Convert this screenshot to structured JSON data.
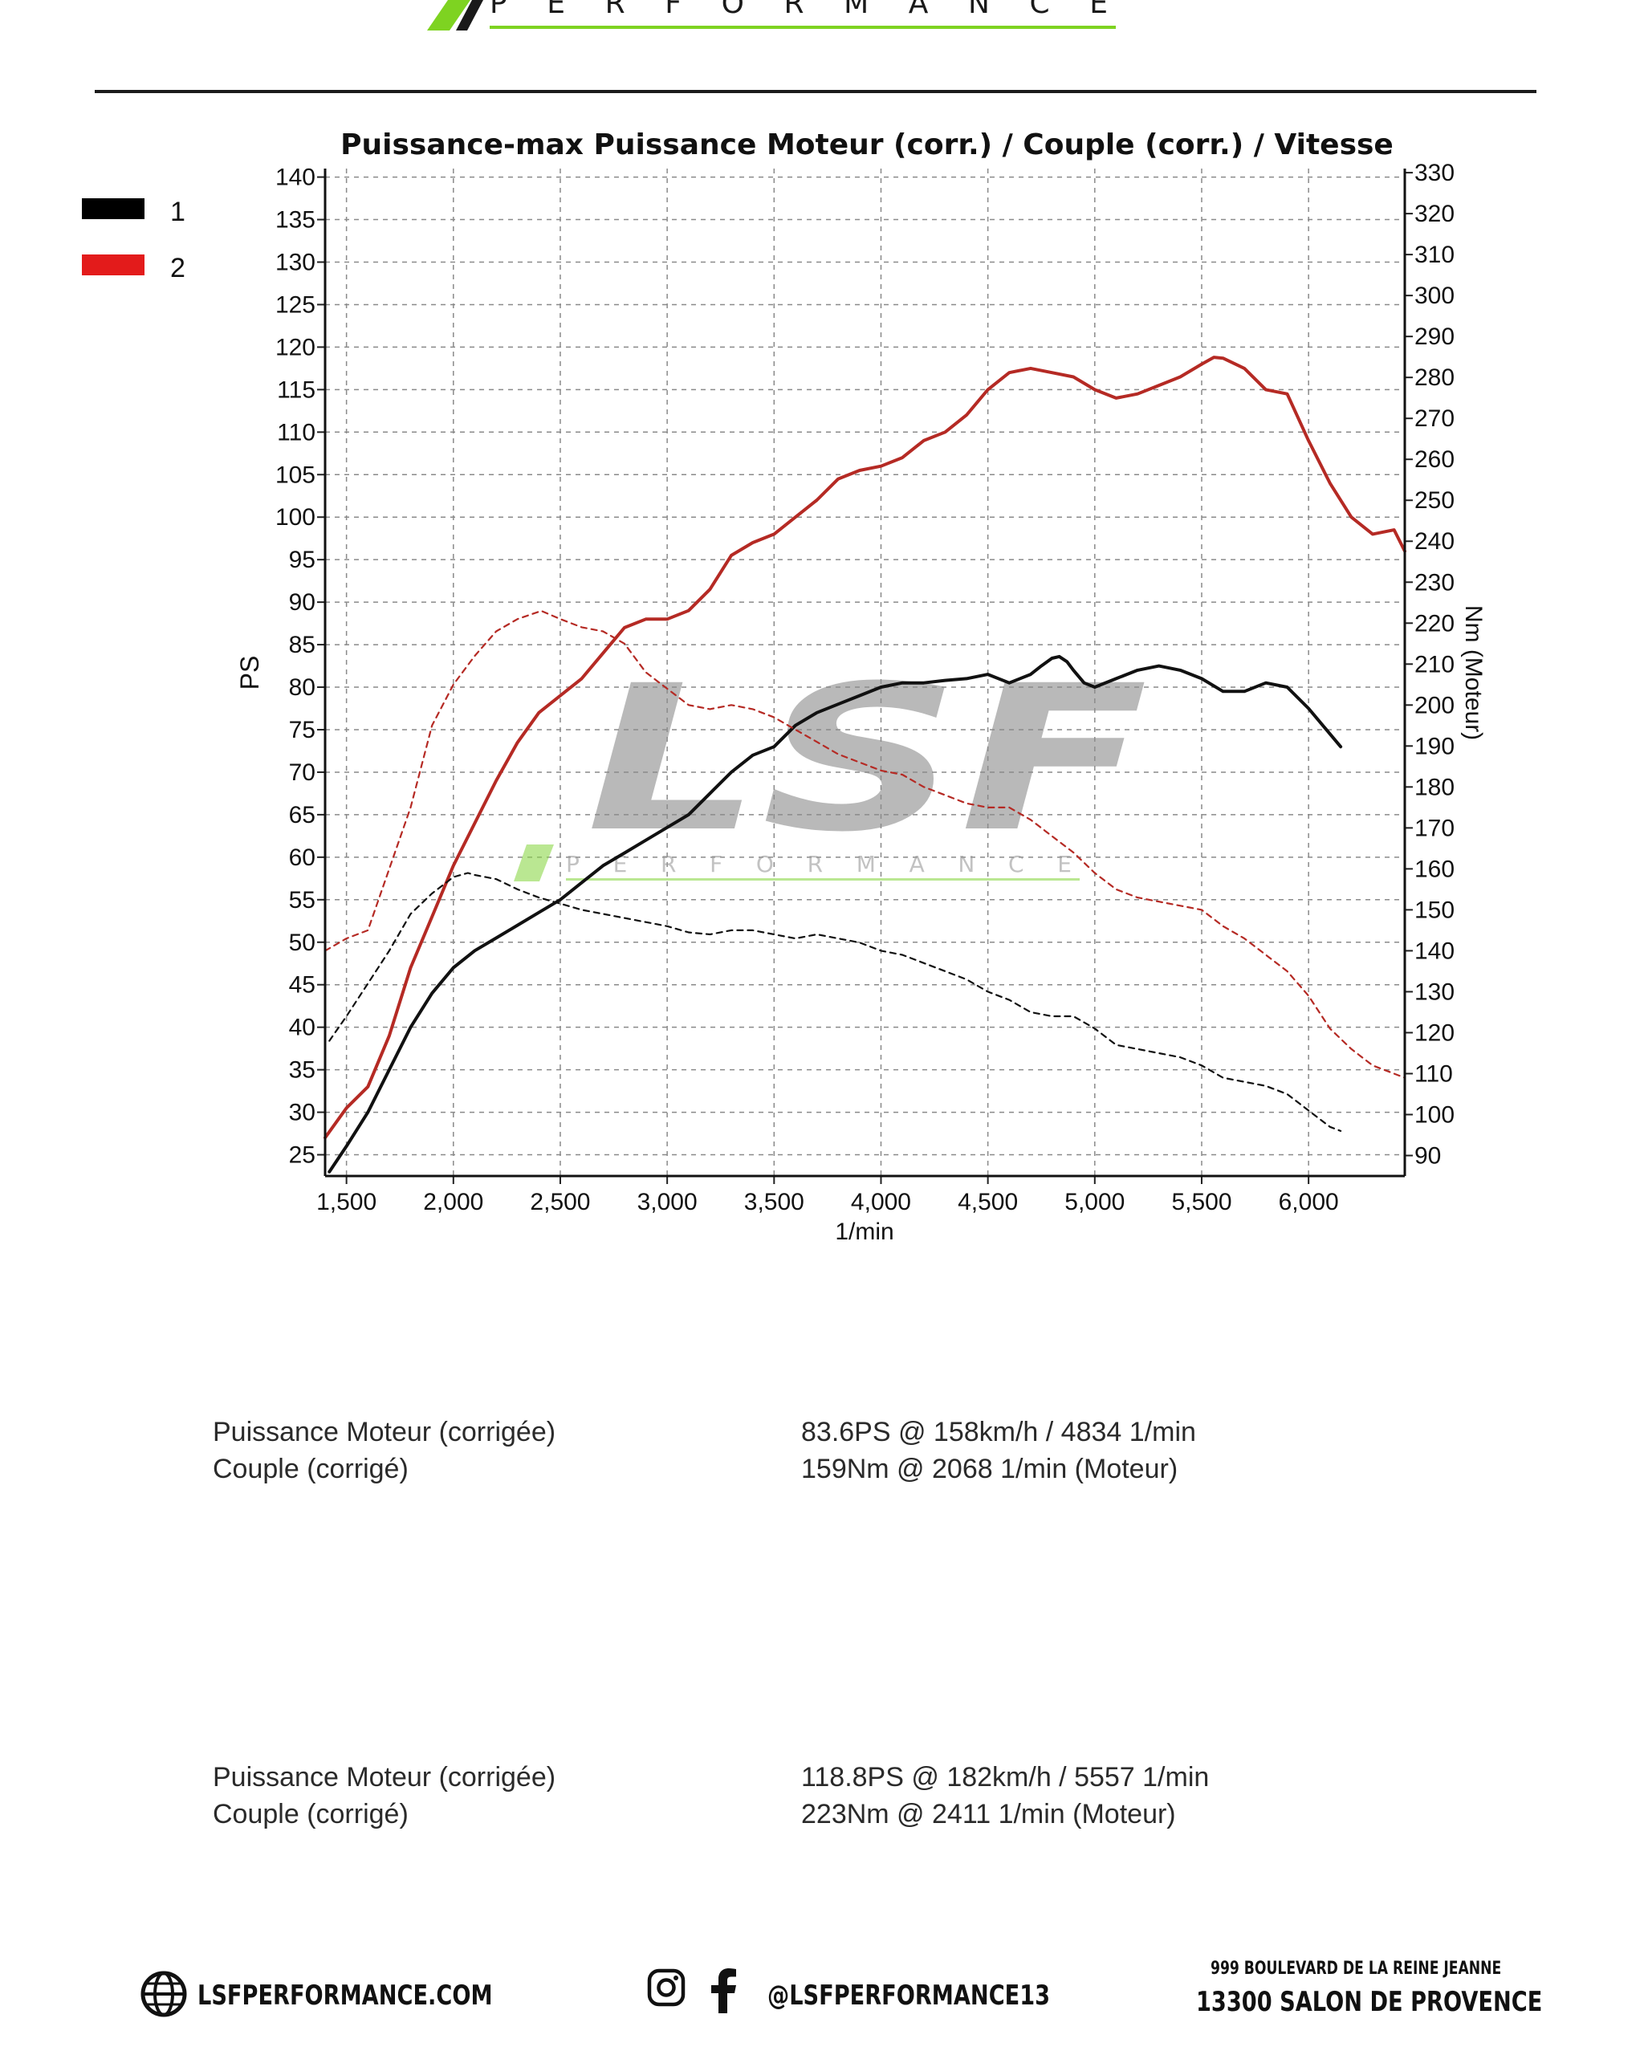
{
  "header": {
    "logo_text": "PERFORMANCE",
    "accent": "#7ed321"
  },
  "legend": [
    {
      "label": "1",
      "color": "#000000"
    },
    {
      "label": "2",
      "color": "#e31b1b"
    }
  ],
  "watermark": {
    "brand": "LSF",
    "sub": "PERFORMANCE"
  },
  "chart_data": {
    "type": "line",
    "title": "Puissance-max Puissance Moteur (corr.) / Couple (corr.) / Vitesse",
    "xlabel": "1/min",
    "ylabel_left": "PS",
    "ylabel_right": "Nm (Moteur)",
    "xlim": [
      1400,
      6450
    ],
    "ylim_left": [
      22.5,
      141
    ],
    "ylim_right": [
      85,
      331
    ],
    "x_ticks": [
      1500,
      2000,
      2500,
      3000,
      3500,
      4000,
      4500,
      5000,
      5500,
      6000
    ],
    "x_tick_labels": [
      "1,500",
      "2,000",
      "2,500",
      "3,000",
      "3,500",
      "4,000",
      "4,500",
      "5,000",
      "5,500",
      "6,000"
    ],
    "y_left_ticks": [
      25,
      30,
      35,
      40,
      45,
      50,
      55,
      60,
      65,
      70,
      75,
      80,
      85,
      90,
      95,
      100,
      105,
      110,
      115,
      120,
      125,
      130,
      135,
      140
    ],
    "y_right_ticks": [
      90,
      100,
      110,
      120,
      130,
      140,
      150,
      160,
      170,
      180,
      190,
      200,
      210,
      220,
      230,
      240,
      250,
      260,
      270,
      280,
      290,
      300,
      310,
      320,
      330
    ],
    "grid": true,
    "legend_position": "top-left outside",
    "series": [
      {
        "name": "1",
        "quantity": "PS",
        "axis": "left",
        "style": "solid",
        "color": "#111111",
        "x": [
          1420,
          1500,
          1600,
          1700,
          1800,
          1900,
          2000,
          2100,
          2200,
          2300,
          2400,
          2500,
          2600,
          2700,
          2800,
          2900,
          3000,
          3100,
          3200,
          3300,
          3400,
          3500,
          3600,
          3700,
          3800,
          3900,
          4000,
          4100,
          4200,
          4300,
          4400,
          4500,
          4600,
          4700,
          4750,
          4800,
          4834,
          4870,
          4900,
          4950,
          5000,
          5100,
          5200,
          5300,
          5400,
          5500,
          5600,
          5700,
          5800,
          5900,
          6000,
          6100,
          6150
        ],
        "y": [
          23,
          26,
          30,
          35,
          40,
          44,
          47,
          49,
          50.5,
          52,
          53.5,
          55,
          57,
          59,
          60.5,
          62,
          63.5,
          65,
          67.5,
          70,
          72,
          73,
          75.5,
          77,
          78,
          79,
          80,
          80.5,
          80.5,
          80.8,
          81,
          81.5,
          80.5,
          81.5,
          82.5,
          83.4,
          83.6,
          83,
          82,
          80.5,
          80,
          81,
          82,
          82.5,
          82,
          81,
          79.5,
          79.5,
          80.5,
          80,
          77.5,
          74.5,
          73
        ]
      },
      {
        "name": "2",
        "quantity": "PS",
        "axis": "left",
        "style": "solid",
        "color": "#b52a24",
        "x": [
          1400,
          1500,
          1600,
          1700,
          1800,
          1900,
          2000,
          2100,
          2200,
          2300,
          2400,
          2500,
          2600,
          2700,
          2800,
          2900,
          3000,
          3100,
          3200,
          3300,
          3400,
          3500,
          3600,
          3700,
          3800,
          3900,
          4000,
          4100,
          4200,
          4300,
          4400,
          4500,
          4600,
          4700,
          4800,
          4900,
          5000,
          5100,
          5200,
          5300,
          5400,
          5500,
          5557,
          5600,
          5700,
          5800,
          5900,
          6000,
          6100,
          6200,
          6300,
          6400,
          6450
        ],
        "y": [
          27,
          30.5,
          33,
          39,
          47,
          53,
          59,
          64,
          69,
          73.5,
          77,
          79,
          81,
          84,
          87,
          88,
          88,
          89,
          91.5,
          95.5,
          97,
          98,
          100,
          102,
          104.5,
          105.5,
          106,
          107,
          109,
          110,
          112,
          115,
          117,
          117.5,
          117,
          116.5,
          115,
          114,
          114.5,
          115.5,
          116.5,
          118,
          118.8,
          118.7,
          117.5,
          115,
          114.5,
          109,
          104,
          100,
          98,
          98.5,
          96
        ]
      },
      {
        "name": "1",
        "quantity": "Nm",
        "axis": "right",
        "style": "dashed",
        "color": "#111111",
        "x": [
          1420,
          1500,
          1600,
          1700,
          1800,
          1900,
          2000,
          2068,
          2100,
          2200,
          2300,
          2400,
          2500,
          2600,
          2700,
          2800,
          2900,
          3000,
          3100,
          3200,
          3300,
          3400,
          3500,
          3600,
          3700,
          3800,
          3900,
          4000,
          4100,
          4200,
          4300,
          4400,
          4500,
          4600,
          4700,
          4800,
          4900,
          5000,
          5100,
          5200,
          5300,
          5400,
          5500,
          5600,
          5700,
          5800,
          5900,
          6000,
          6100,
          6150
        ],
        "y": [
          118,
          124,
          132,
          140,
          149,
          154,
          158,
          159,
          158.5,
          157.5,
          155,
          153,
          151.5,
          150,
          149,
          148,
          147,
          146,
          144.5,
          144,
          145,
          145,
          144,
          143,
          144,
          143,
          142,
          140,
          139,
          137,
          135,
          133,
          130,
          128,
          125,
          124,
          124,
          121,
          117,
          116,
          115,
          114,
          112,
          109,
          108,
          107,
          105,
          101,
          97,
          96
        ]
      },
      {
        "name": "2",
        "quantity": "Nm",
        "axis": "right",
        "style": "dashed",
        "color": "#b52a24",
        "x": [
          1400,
          1500,
          1600,
          1700,
          1800,
          1900,
          2000,
          2100,
          2200,
          2300,
          2411,
          2500,
          2600,
          2700,
          2800,
          2900,
          3000,
          3100,
          3200,
          3300,
          3400,
          3500,
          3600,
          3700,
          3800,
          3900,
          4000,
          4100,
          4200,
          4300,
          4400,
          4500,
          4600,
          4700,
          4800,
          4900,
          5000,
          5100,
          5200,
          5300,
          5400,
          5500,
          5600,
          5700,
          5800,
          5900,
          6000,
          6100,
          6200,
          6300,
          6400,
          6450
        ],
        "y": [
          140,
          143,
          145,
          160,
          175,
          195,
          205,
          212,
          218,
          221,
          223,
          221,
          219,
          218,
          215,
          208,
          204,
          200,
          199,
          200,
          199,
          197,
          194,
          191,
          188,
          186,
          184,
          183,
          180,
          178,
          176,
          175,
          175,
          172,
          168,
          164,
          159,
          155,
          153,
          152,
          151,
          150,
          146,
          143,
          139,
          135,
          129,
          121,
          116,
          112,
          110,
          109
        ]
      }
    ]
  },
  "results": [
    {
      "power_label": "Puissance Moteur (corrigée)",
      "power_value": "83.6PS @ 158km/h / 4834 1/min",
      "torque_label": "Couple (corrigé)",
      "torque_value": "159Nm @ 2068 1/min (Moteur)"
    },
    {
      "power_label": "Puissance Moteur (corrigée)",
      "power_value": "118.8PS @ 182km/h / 5557 1/min",
      "torque_label": "Couple (corrigé)",
      "torque_value": "223Nm @ 2411 1/min (Moteur)"
    }
  ],
  "footer": {
    "website": "LSFPERFORMANCE.COM",
    "social_handle": "@LSFPERFORMANCE13",
    "address_line1": "999 BOULEVARD DE LA REINE JEANNE",
    "address_line2": "13300 SALON DE PROVENCE",
    "icons": [
      "globe-icon",
      "instagram-icon",
      "facebook-icon"
    ]
  }
}
